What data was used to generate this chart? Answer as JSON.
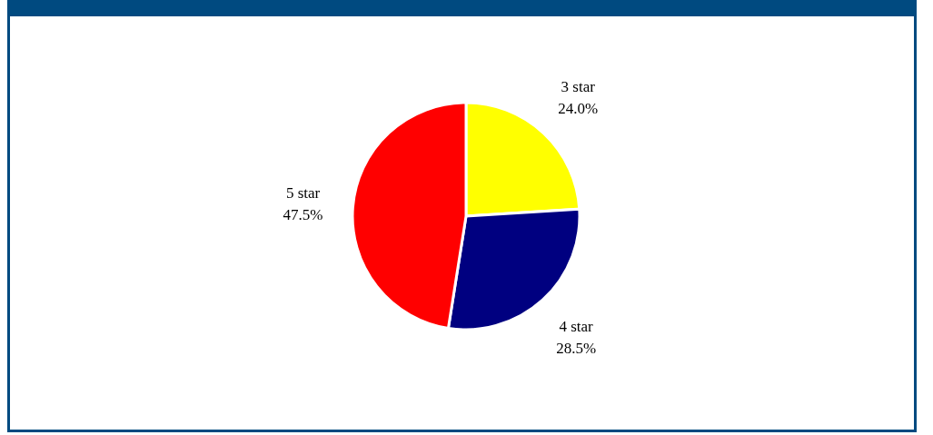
{
  "chart_data": {
    "type": "pie",
    "categories": [
      "3 star",
      "4 star",
      "5 star"
    ],
    "values": [
      24.0,
      28.5,
      47.5
    ],
    "value_labels": [
      "24.0%",
      "28.5%",
      "47.5%"
    ],
    "colors": [
      "#ffff00",
      "#000080",
      "#ff0000"
    ]
  }
}
